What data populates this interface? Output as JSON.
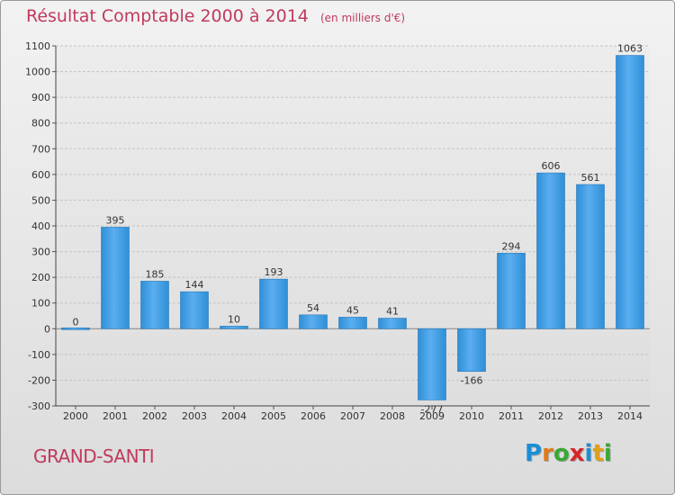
{
  "chart_data": {
    "type": "bar",
    "title": "Résultat Comptable 2000 à 2014",
    "subtitle": "(en milliers d'€)",
    "categories": [
      "2000",
      "2001",
      "2002",
      "2003",
      "2004",
      "2005",
      "2006",
      "2007",
      "2008",
      "2009",
      "2010",
      "2011",
      "2012",
      "2013",
      "2014"
    ],
    "values": [
      0,
      395,
      185,
      144,
      10,
      193,
      54,
      45,
      41,
      -277,
      -166,
      294,
      606,
      561,
      1063
    ],
    "value_labels": [
      "0",
      "395",
      "185",
      "144",
      "10",
      "193",
      "54",
      "45",
      "41",
      "-277",
      "-166",
      "294",
      "606",
      "561",
      "1063"
    ],
    "ylim": [
      -300,
      1100
    ],
    "yticks": [
      -300,
      -200,
      -100,
      0,
      100,
      200,
      300,
      400,
      500,
      600,
      700,
      800,
      900,
      1000,
      1100
    ],
    "grid": true,
    "xlabel": "",
    "ylabel": "",
    "bar_color": "#2f8fd6",
    "bar_color_light": "#5aaef0"
  },
  "commune": "GRAND-SANTI",
  "logo": {
    "letters": [
      "P",
      "r",
      "o",
      "x",
      "i",
      "t",
      "i"
    ],
    "colors": [
      "#1a8fd6",
      "#e07a1a",
      "#3aa832",
      "#d6262a",
      "#1a8fd6",
      "#e0a01a",
      "#3aa832"
    ]
  }
}
